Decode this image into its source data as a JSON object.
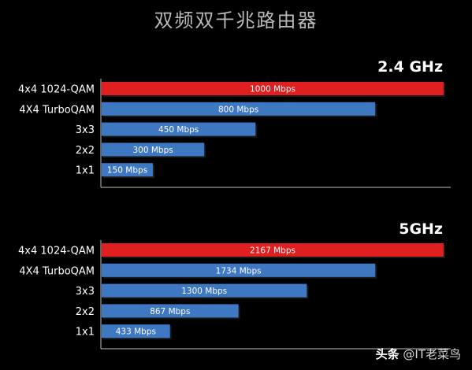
{
  "title": "双频双千兆路由器",
  "watermark": {
    "prefix": "头条",
    "handle": "@IT老菜鸟"
  },
  "colors": {
    "highlight": "#e02020",
    "bar": "#3e78c2",
    "background": "#000000",
    "axis": "#bfbfbf"
  },
  "chart_data": [
    {
      "type": "bar",
      "orientation": "horizontal",
      "title": "2.4 GHz",
      "categories": [
        "4x4 1024-QAM",
        "4X4 TurboQAM",
        "3x3",
        "2x2",
        "1x1"
      ],
      "values": [
        1000,
        800,
        450,
        300,
        150
      ],
      "data_labels": [
        "1000 Mbps",
        "800 Mbps",
        "450 Mbps",
        "300 Mbps",
        "150 Mbps"
      ],
      "highlight_index": 0,
      "xlim": [
        0,
        1000
      ]
    },
    {
      "type": "bar",
      "orientation": "horizontal",
      "title": "5GHz",
      "categories": [
        "4x4 1024-QAM",
        "4X4 TurboQAM",
        "3x3",
        "2x2",
        "1x1"
      ],
      "values": [
        2167,
        1734,
        1300,
        867,
        433
      ],
      "data_labels": [
        "2167 Mbps",
        "1734 Mbps",
        "1300 Mbps",
        "867 Mbps",
        "433 Mbps"
      ],
      "highlight_index": 0,
      "xlim": [
        0,
        2167
      ]
    }
  ]
}
